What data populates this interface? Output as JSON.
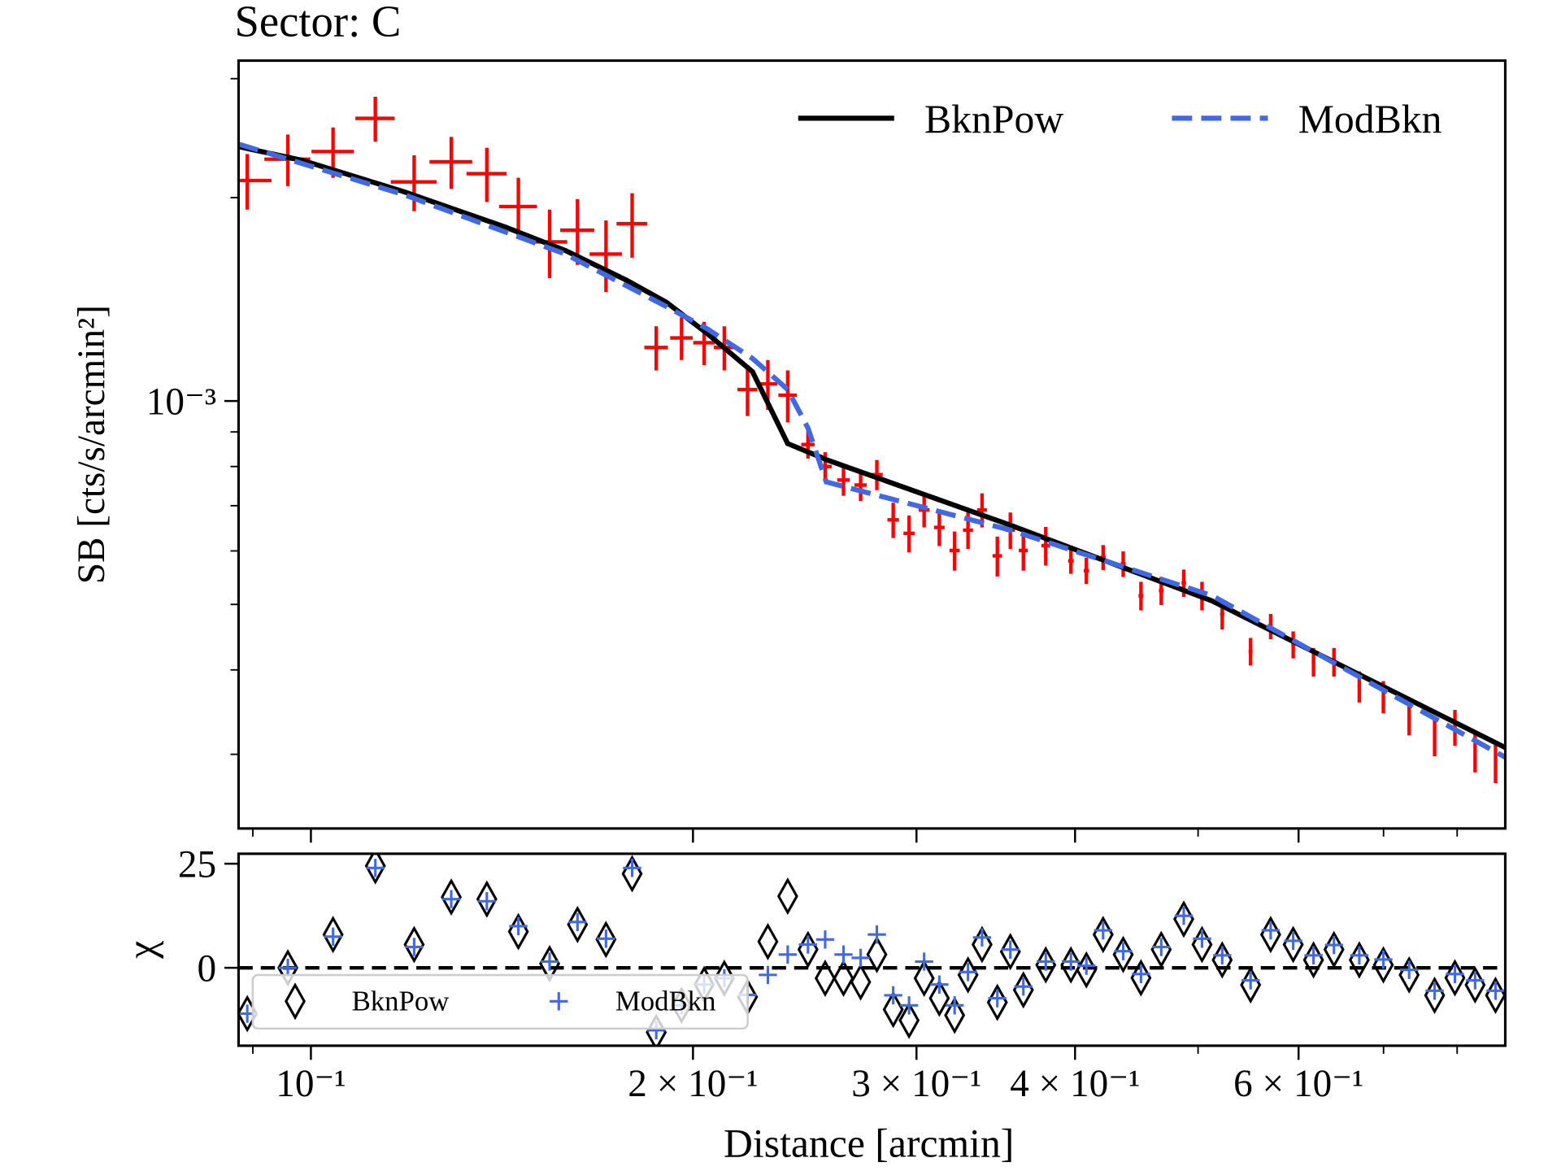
{
  "chart_data": [
    {
      "type": "errorbar",
      "title": "Sector: C",
      "y_label": "SB [cts/s/arcmin²]",
      "xscale": "log",
      "yscale": "log",
      "xlim": [
        0.0877,
        0.873
      ],
      "ylim": [
        0.000233,
        0.00319
      ],
      "yticks": [
        {
          "value": 0.001,
          "label": "10⁻³"
        }
      ],
      "yminor": [
        0.0003,
        0.0004,
        0.0005,
        0.0006,
        0.0007,
        0.0008,
        0.0009,
        0.002,
        0.003
      ],
      "points": {
        "color": "#ff0000",
        "x": [
          0.0891,
          0.0959,
          0.1041,
          0.1124,
          0.1206,
          0.129,
          0.1376,
          0.1457,
          0.1542,
          0.1622,
          0.1708,
          0.1791,
          0.1871,
          0.1959,
          0.2041,
          0.2117,
          0.2208,
          0.2291,
          0.2375,
          0.2464,
          0.2542,
          0.2628,
          0.2711,
          0.2792,
          0.2876,
          0.296,
          0.3042,
          0.3127,
          0.3215,
          0.3294,
          0.3379,
          0.3474,
          0.3557,
          0.3642,
          0.3793,
          0.397,
          0.4083,
          0.4209,
          0.4365,
          0.4508,
          0.4677,
          0.4872,
          0.5036,
          0.5224,
          0.55,
          0.5704,
          0.5942,
          0.6165,
          0.6398,
          0.6699,
          0.6998,
          0.7333,
          0.768,
          0.7968,
          0.8265,
          0.8577
        ],
        "y": [
          0.00212,
          0.00228,
          0.00234,
          0.00262,
          0.00211,
          0.00226,
          0.00217,
          0.00194,
          0.00172,
          0.00179,
          0.00165,
          0.00183,
          0.0012,
          0.00124,
          0.00122,
          0.0012,
          0.00104,
          0.00106,
          0.00102,
          0.000862,
          0.0008,
          0.000764,
          0.000751,
          0.000778,
          0.000667,
          0.000637,
          0.00069,
          0.00065,
          0.000601,
          0.000644,
          0.00069,
          0.00059,
          0.000644,
          0.000601,
          0.000611,
          0.00058,
          0.000561,
          0.000587,
          0.000574,
          0.000515,
          0.000524,
          0.000538,
          0.000515,
          0.000484,
          0.000426,
          0.000464,
          0.000436,
          0.000411,
          0.000411,
          0.000378,
          0.000365,
          0.00034,
          0.000318,
          0.000329,
          0.000302,
          0.000292
        ],
        "xerr": [
          0.004,
          0.004,
          0.004,
          0.004,
          0.005,
          0.005,
          0.005,
          0.005,
          0.005,
          0.005,
          0.005,
          0.005,
          0.004,
          0.004,
          0.004,
          0.004,
          0.004,
          0.004,
          0.004,
          0.003,
          0.003,
          0.003,
          0.003,
          0.003,
          0.003,
          0.003,
          0.003,
          0.003,
          0.003,
          0.003,
          0.003,
          0.003,
          0.003,
          0.003,
          0.003,
          0.002,
          0.002,
          0.002,
          0.002,
          0.002,
          0.002,
          0.002,
          0.002,
          0.002,
          0.002,
          0.002,
          0.002,
          0.002,
          0.002,
          0.002,
          0.002,
          0.002,
          0.002,
          0.002,
          0.002,
          0.002
        ],
        "yerr": [
          0.0002,
          0.0002,
          0.0002,
          0.0002,
          0.0002,
          0.0002,
          0.0002,
          0.0002,
          0.0002,
          0.0002,
          0.0002,
          0.0002,
          9e-05,
          9e-05,
          9e-05,
          9e-05,
          9e-05,
          9e-05,
          9e-05,
          4e-05,
          4e-05,
          4e-05,
          4e-05,
          4e-05,
          4e-05,
          4e-05,
          4e-05,
          4e-05,
          4e-05,
          4e-05,
          4e-05,
          4e-05,
          4e-05,
          4e-05,
          4e-05,
          2.5e-05,
          2.5e-05,
          2.5e-05,
          2.5e-05,
          2.5e-05,
          2.5e-05,
          2.5e-05,
          2.5e-05,
          2.5e-05,
          2e-05,
          2e-05,
          2e-05,
          2e-05,
          2e-05,
          2e-05,
          2e-05,
          2e-05,
          2e-05,
          2e-05,
          2e-05,
          2e-05
        ]
      },
      "series": [
        {
          "name": "BknPow",
          "color": "#000000",
          "dash": "solid",
          "x": [
            0.0877,
            0.0985,
            0.1184,
            0.1422,
            0.1587,
            0.1772,
            0.1906,
            0.2051,
            0.2228,
            0.2375,
            0.2556,
            0.3557,
            0.5129,
            0.873
          ],
          "values": [
            0.00238,
            0.00227,
            0.00204,
            0.00181,
            0.00167,
            0.00151,
            0.0014,
            0.00126,
            0.001105,
            0.000865,
            0.000817,
            0.000655,
            0.000506,
            0.000307
          ]
        },
        {
          "name": "ModBkn",
          "color": "#4169e1",
          "dash": "dashed",
          "x": [
            0.0877,
            0.1184,
            0.1587,
            0.1906,
            0.2051,
            0.2228,
            0.2375,
            0.2464,
            0.2547,
            0.3557,
            0.5129,
            0.873
          ],
          "values": [
            0.0024,
            0.00202,
            0.00165,
            0.00138,
            0.00128,
            0.001156,
            0.00104,
            0.000912,
            0.000759,
            0.000644,
            0.000515,
            0.000297
          ]
        }
      ],
      "legend": "upper right"
    },
    {
      "type": "scatter",
      "x_label": "Distance [arcmin]",
      "y_label": "χ",
      "xscale": "log",
      "xlim": [
        0.0877,
        0.873
      ],
      "ylim": [
        -18.7,
        27.4
      ],
      "xticks": [
        {
          "value": 0.1,
          "label": "10⁻¹"
        },
        {
          "value": 0.2,
          "label": "2 × 10⁻¹"
        },
        {
          "value": 0.3,
          "label": "3 × 10⁻¹"
        },
        {
          "value": 0.4,
          "label": "4 × 10⁻¹"
        },
        {
          "value": 0.6,
          "label": "6 × 10⁻¹"
        }
      ],
      "xminor": [
        0.09,
        0.5,
        0.7,
        0.8
      ],
      "yticks": [
        0,
        25
      ],
      "hline": 0,
      "x": [
        0.0891,
        0.0959,
        0.1041,
        0.1124,
        0.1206,
        0.129,
        0.1376,
        0.1457,
        0.1542,
        0.1622,
        0.1708,
        0.1791,
        0.1871,
        0.1959,
        0.2041,
        0.2117,
        0.2208,
        0.2291,
        0.2375,
        0.2464,
        0.2542,
        0.2628,
        0.2711,
        0.2792,
        0.2876,
        0.296,
        0.3042,
        0.3127,
        0.3215,
        0.3294,
        0.3379,
        0.3474,
        0.3557,
        0.3642,
        0.3793,
        0.397,
        0.4083,
        0.4209,
        0.4365,
        0.4508,
        0.4677,
        0.4872,
        0.5036,
        0.5224,
        0.55,
        0.5704,
        0.5942,
        0.6165,
        0.6398,
        0.6699,
        0.6998,
        0.7333,
        0.768,
        0.7968,
        0.8265,
        0.8577
      ],
      "series": [
        {
          "name": "BknPow",
          "color": "#000000",
          "marker": "diamond",
          "values": [
            -11,
            0,
            8,
            24.5,
            5.6,
            17,
            16.5,
            8.7,
            1,
            10.4,
            6.8,
            22.6,
            -15.5,
            -9,
            -4,
            -2.5,
            -7,
            6.3,
            17.2,
            4.4,
            -2.5,
            -2.5,
            -3.4,
            3.2,
            -10,
            -12.6,
            -2.5,
            -7.3,
            -11.4,
            -1.7,
            5.6,
            -8.3,
            3.9,
            -5.3,
            0.7,
            0.7,
            -0.5,
            8,
            3.2,
            -2.4,
            4.4,
            11.7,
            5.6,
            1.9,
            -4.1,
            8,
            5.6,
            1.9,
            4.4,
            1.9,
            0.7,
            -1.7,
            -6.6,
            -2.4,
            -4.1,
            -6.6
          ]
        },
        {
          "name": "ModBkn",
          "color": "#4169e1",
          "marker": "plus",
          "values": [
            -11,
            0,
            7.5,
            24,
            5,
            16.5,
            16,
            10,
            1.5,
            11,
            7,
            24,
            -15,
            -9,
            -4,
            -2.5,
            -6.5,
            -1.7,
            3.2,
            5.6,
            6.8,
            3.2,
            2.4,
            8,
            -6.6,
            -9,
            1.5,
            -4,
            -9,
            -1,
            7.3,
            -7.3,
            4.4,
            -4.5,
            1.5,
            1.5,
            0.5,
            9,
            4,
            -1.5,
            5,
            12.5,
            7,
            3,
            -3,
            9,
            6.5,
            3,
            5.5,
            3,
            2,
            -0.5,
            -5.5,
            -1.5,
            -3,
            -5.5
          ]
        }
      ],
      "legend": "lower left"
    }
  ]
}
